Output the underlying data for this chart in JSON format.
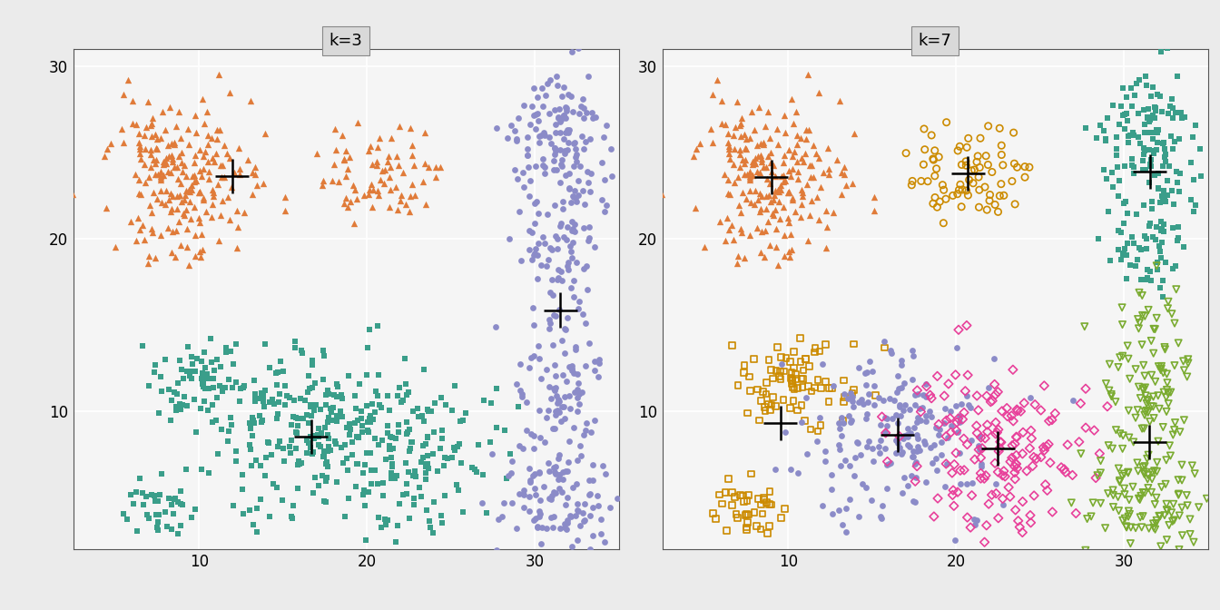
{
  "title_k3": "k=3",
  "title_k7": "k=7",
  "xlim": [
    2.5,
    35
  ],
  "ylim": [
    2,
    31
  ],
  "xticks": [
    10,
    20,
    30
  ],
  "yticks": [
    10,
    20,
    30
  ],
  "bg_color": "#EBEBEB",
  "panel_bg": "#F5F5F5",
  "grid_color": "#FFFFFF",
  "strip_color": "#D9D9D9",
  "cross_arm": 1.0,
  "cross_lw": 1.8,
  "ms_filled": 28,
  "ms_open": 28,
  "lw_open": 1.2,
  "orange": "#E07B39",
  "teal": "#3A9E8A",
  "purple": "#8B8BC8",
  "gold": "#CC8B00",
  "pink": "#E8409A",
  "green": "#7AAB30"
}
